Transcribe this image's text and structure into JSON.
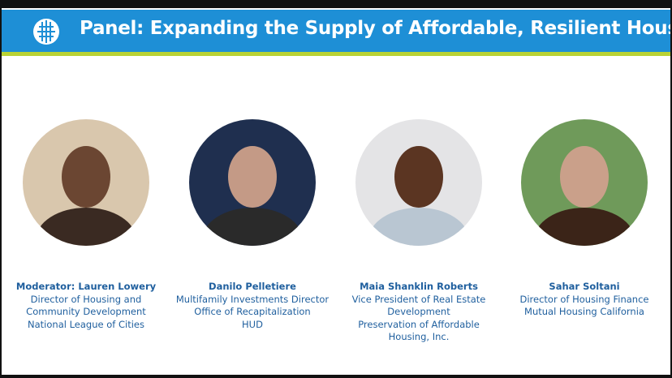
{
  "header": {
    "title": "Panel: Expanding the Supply of Affordable, Resilient Housing"
  },
  "panelists": [
    {
      "name": "Moderator: Lauren Lowery",
      "lines": [
        "Director of Housing and",
        "Community Development",
        "National League of Cities"
      ]
    },
    {
      "name": "Danilo Pelletiere",
      "lines": [
        "Multifamily Investments Director",
        "Office of Recapitalization",
        "HUD"
      ]
    },
    {
      "name": "Maia Shanklin Roberts",
      "lines": [
        "Vice President of Real Estate",
        "Development",
        "Preservation of Affordable",
        "Housing, Inc."
      ]
    },
    {
      "name": "Sahar Soltani",
      "lines": [
        "Director of Housing Finance",
        "Mutual Housing California"
      ]
    }
  ]
}
